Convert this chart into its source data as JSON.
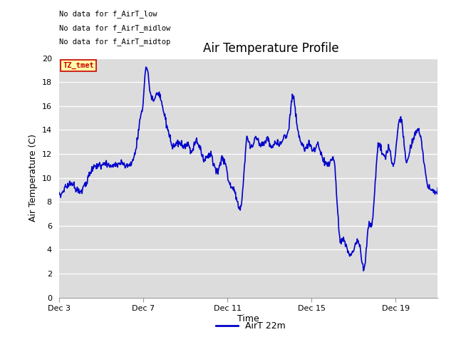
{
  "title": "Air Temperature Profile",
  "xlabel": "Time",
  "ylabel": "Air Temperature (C)",
  "ylim": [
    0,
    20
  ],
  "xlim_days": [
    3,
    21
  ],
  "plot_bg_color": "#dcdcdc",
  "line_color": "#0000cc",
  "line_width": 1.2,
  "legend_label": "AirT 22m",
  "text_annotations": [
    "No data for f_AirT_low",
    "No data for f_AirT_midlow",
    "No data for f_AirT_midtop"
  ],
  "tz_label": "TZ_tmet",
  "x_tick_labels": [
    "Dec 3",
    "Dec 7",
    "Dec 11",
    "Dec 15",
    "Dec 19"
  ],
  "x_tick_positions": [
    3,
    7,
    11,
    15,
    19
  ],
  "y_tick_labels": [
    "0",
    "2",
    "4",
    "6",
    "8",
    "10",
    "12",
    "14",
    "16",
    "18",
    "20"
  ],
  "y_tick_positions": [
    0,
    2,
    4,
    6,
    8,
    10,
    12,
    14,
    16,
    18,
    20
  ],
  "title_fontsize": 12,
  "axis_label_fontsize": 9,
  "tick_fontsize": 8
}
